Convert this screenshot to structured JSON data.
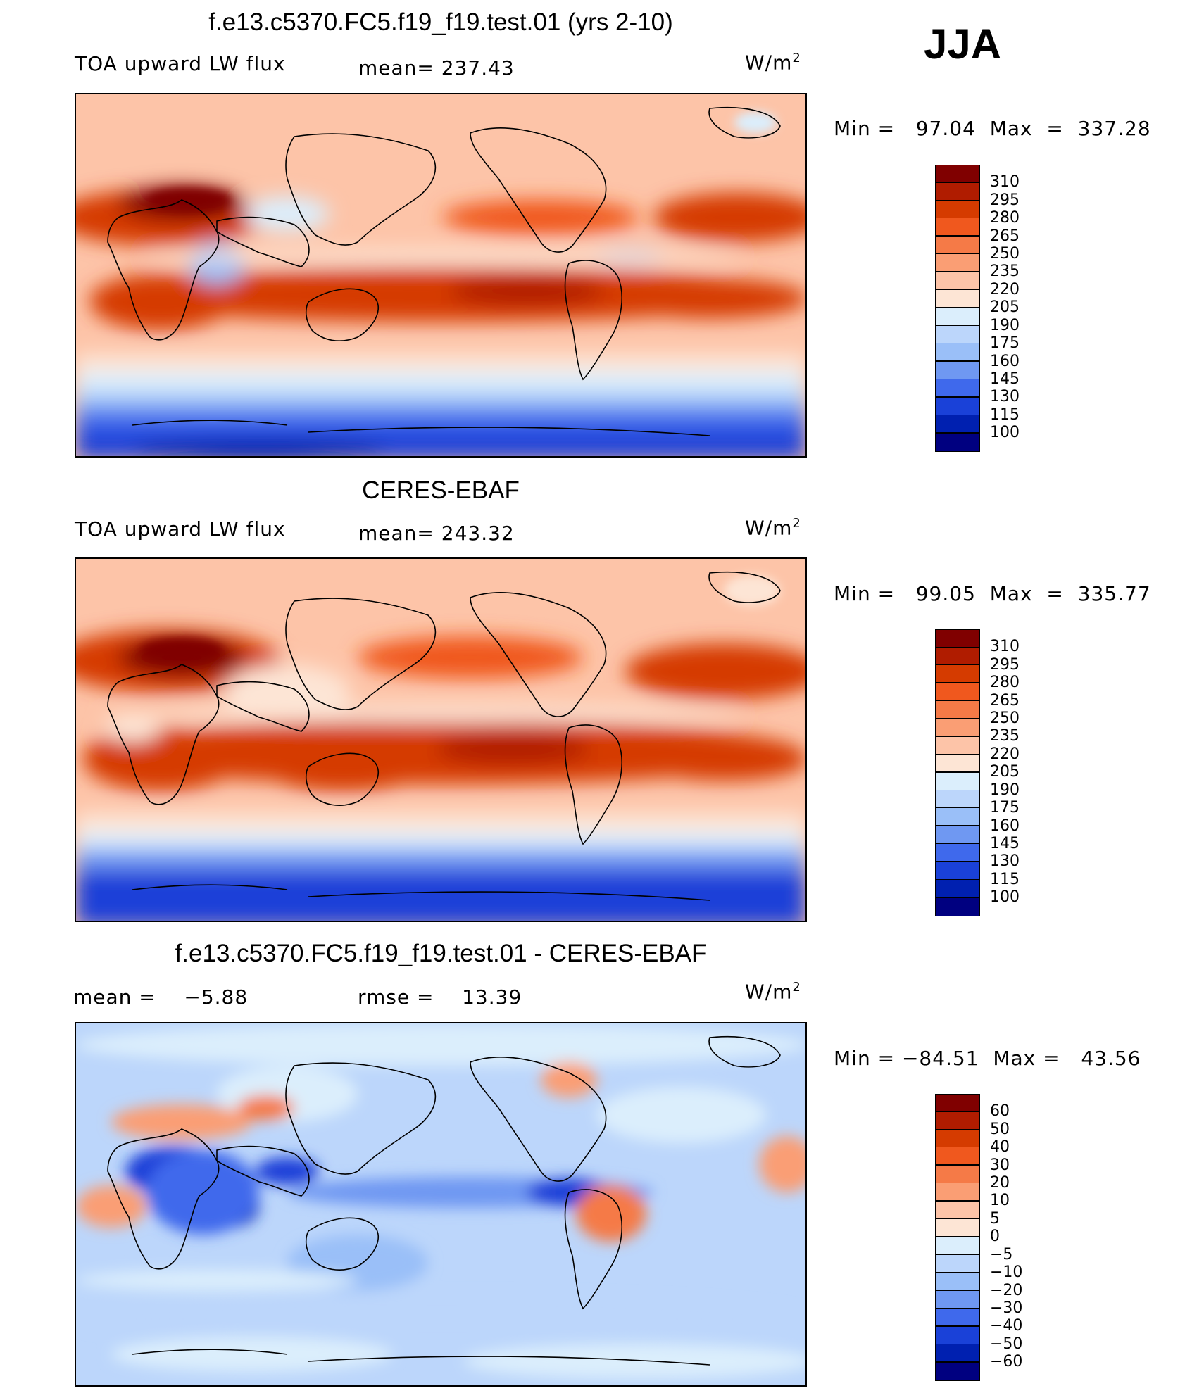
{
  "season": "JJA",
  "panels": [
    {
      "title": "f.e13.c5370.FC5.f19_f19.test.01 (yrs 2-10)",
      "left_label": "TOA upward LW flux",
      "center_label": "mean= 237.43",
      "units": "W/m",
      "units_sup": "2",
      "minmax": "Min =   97.04  Max  =  337.28",
      "colorbar_ticks": [
        "310",
        "295",
        "280",
        "265",
        "250",
        "235",
        "220",
        "205",
        "190",
        "175",
        "160",
        "145",
        "130",
        "115",
        "100"
      ],
      "colors": [
        "#800000",
        "#b01c00",
        "#d53b00",
        "#f0581e",
        "#f57a47",
        "#fa9e74",
        "#fdc4a8",
        "#fde5d5",
        "#dbeefc",
        "#bcd6fb",
        "#9abff8",
        "#6f98f2",
        "#3f69ec",
        "#1a41d8",
        "#0020b0",
        "#000080"
      ]
    },
    {
      "title": "CERES-EBAF",
      "left_label": "TOA upward LW flux",
      "center_label": "mean= 243.32",
      "units": "W/m",
      "units_sup": "2",
      "minmax": "Min =   99.05  Max  =  335.77",
      "colorbar_ticks": [
        "310",
        "295",
        "280",
        "265",
        "250",
        "235",
        "220",
        "205",
        "190",
        "175",
        "160",
        "145",
        "130",
        "115",
        "100"
      ],
      "colors": [
        "#800000",
        "#b01c00",
        "#d53b00",
        "#f0581e",
        "#f57a47",
        "#fa9e74",
        "#fdc4a8",
        "#fde5d5",
        "#dbeefc",
        "#bcd6fb",
        "#9abff8",
        "#6f98f2",
        "#3f69ec",
        "#1a41d8",
        "#0020b0",
        "#000080"
      ]
    },
    {
      "title": "f.e13.c5370.FC5.f19_f19.test.01 - CERES-EBAF",
      "left_label": "mean =    −5.88",
      "center_label": "rmse =    13.39",
      "units": "W/m",
      "units_sup": "2",
      "minmax": "Min = −84.51  Max =   43.56",
      "colorbar_ticks": [
        "60",
        "50",
        "40",
        "30",
        "20",
        "10",
        "5",
        "0",
        "−5",
        "−10",
        "−20",
        "−30",
        "−40",
        "−50",
        "−60"
      ],
      "colors": [
        "#800000",
        "#b01c00",
        "#d53b00",
        "#f0581e",
        "#f57a47",
        "#fa9e74",
        "#fdc4a8",
        "#fde5d5",
        "#dbeefc",
        "#bcd6fb",
        "#9abff8",
        "#6f98f2",
        "#3f69ec",
        "#1a41d8",
        "#0020b0",
        "#000080"
      ]
    }
  ]
}
